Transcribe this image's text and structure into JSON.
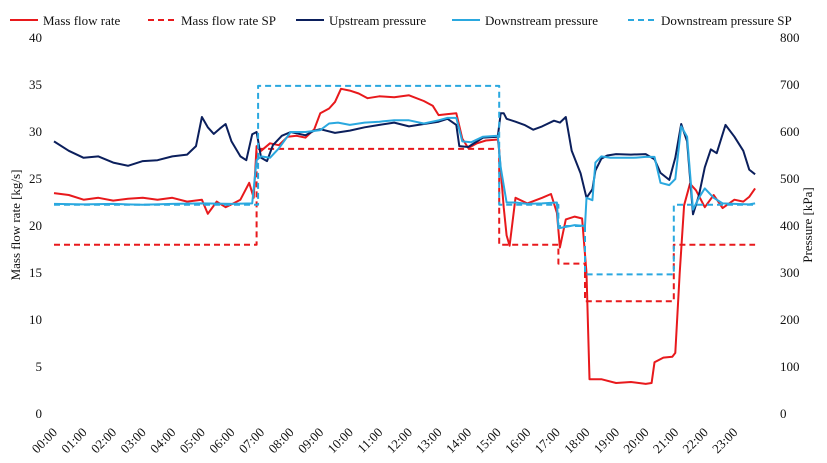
{
  "chart_data": {
    "type": "line",
    "title": "",
    "xlabel": "",
    "ylabel": "Mass flow rate [kg/s]",
    "y2label": "Pressure [kPa]",
    "ylim": [
      0,
      40
    ],
    "y2lim": [
      0,
      800
    ],
    "yticks": [
      "0",
      "5",
      "10",
      "15",
      "20",
      "25",
      "30",
      "35",
      "40"
    ],
    "y2ticks": [
      "0",
      "100",
      "200",
      "300",
      "400",
      "500",
      "600",
      "700",
      "800"
    ],
    "xlim": [
      0,
      24
    ],
    "xticks": [
      "00:00",
      "01:00",
      "02:00",
      "03:00",
      "04:00",
      "05:00",
      "06:00",
      "07:00",
      "08:00",
      "09:00",
      "10:00",
      "11:00",
      "12:00",
      "13:00",
      "14:00",
      "15:00",
      "16:00",
      "17:00",
      "18:00",
      "19:00",
      "20:00",
      "21:00",
      "22:00",
      "23:00"
    ],
    "legend_position": "top",
    "series": [
      {
        "name": "Mass flow rate",
        "axis": "left",
        "color": "#e8191c",
        "dash": "solid",
        "width": 2,
        "points": [
          [
            0,
            23.5
          ],
          [
            0.5,
            23.3
          ],
          [
            1,
            22.8
          ],
          [
            1.5,
            23
          ],
          [
            2,
            22.7
          ],
          [
            2.5,
            22.9
          ],
          [
            3,
            23
          ],
          [
            3.5,
            22.8
          ],
          [
            4,
            23
          ],
          [
            4.5,
            22.6
          ],
          [
            5,
            22.8
          ],
          [
            5.2,
            21.3
          ],
          [
            5.5,
            22.6
          ],
          [
            5.8,
            22
          ],
          [
            6,
            22.3
          ],
          [
            6.3,
            22.8
          ],
          [
            6.6,
            24.6
          ],
          [
            6.75,
            23
          ],
          [
            6.85,
            28.5
          ],
          [
            7,
            28
          ],
          [
            7.3,
            28.8
          ],
          [
            7.6,
            28.6
          ],
          [
            7.9,
            29.5
          ],
          [
            8.2,
            29.6
          ],
          [
            8.5,
            29.4
          ],
          [
            8.8,
            30.3
          ],
          [
            9,
            32
          ],
          [
            9.3,
            32.5
          ],
          [
            9.5,
            33.2
          ],
          [
            9.7,
            34.6
          ],
          [
            10,
            34.4
          ],
          [
            10.3,
            34.1
          ],
          [
            10.6,
            33.6
          ],
          [
            11,
            33.8
          ],
          [
            11.5,
            33.7
          ],
          [
            12,
            33.9
          ],
          [
            12.5,
            33.3
          ],
          [
            12.8,
            32.8
          ],
          [
            13,
            31.8
          ],
          [
            13.3,
            31.9
          ],
          [
            13.6,
            32
          ],
          [
            13.8,
            29.3
          ],
          [
            14,
            28.3
          ],
          [
            14.3,
            28.8
          ],
          [
            14.6,
            29.1
          ],
          [
            15,
            29.2
          ],
          [
            15.05,
            28
          ],
          [
            15.2,
            22
          ],
          [
            15.3,
            19
          ],
          [
            15.4,
            17.9
          ],
          [
            15.6,
            23
          ],
          [
            16,
            22.4
          ],
          [
            16.5,
            23
          ],
          [
            16.8,
            23.4
          ],
          [
            17,
            21.4
          ],
          [
            17.1,
            17.7
          ],
          [
            17.3,
            20.7
          ],
          [
            17.6,
            21
          ],
          [
            17.85,
            20.8
          ],
          [
            18,
            15
          ],
          [
            18.1,
            3.7
          ],
          [
            18.5,
            3.7
          ],
          [
            19,
            3.3
          ],
          [
            19.5,
            3.4
          ],
          [
            20,
            3.2
          ],
          [
            20.2,
            3.3
          ],
          [
            20.3,
            5.5
          ],
          [
            20.6,
            6
          ],
          [
            20.9,
            6.1
          ],
          [
            21,
            6.5
          ],
          [
            21.15,
            15
          ],
          [
            21.3,
            22.2
          ],
          [
            21.5,
            24.5
          ],
          [
            21.7,
            23.8
          ],
          [
            22,
            22
          ],
          [
            22.3,
            23.3
          ],
          [
            22.6,
            21.9
          ],
          [
            23,
            22.8
          ],
          [
            23.3,
            22.6
          ],
          [
            23.5,
            23.1
          ],
          [
            23.7,
            24
          ]
        ]
      },
      {
        "name": "Mass flow rate SP",
        "axis": "left",
        "color": "#e8191c",
        "dash": "dashed",
        "width": 2,
        "points": [
          [
            0,
            18
          ],
          [
            6.85,
            18
          ],
          [
            6.85,
            28.2
          ],
          [
            15.05,
            28.2
          ],
          [
            15.05,
            18
          ],
          [
            17.05,
            18
          ],
          [
            17.05,
            16
          ],
          [
            17.95,
            16
          ],
          [
            17.95,
            12
          ],
          [
            20.95,
            12
          ],
          [
            20.95,
            18
          ],
          [
            23.7,
            18
          ]
        ]
      },
      {
        "name": "Upstream pressure",
        "axis": "right",
        "color": "#0b1f5c",
        "dash": "solid",
        "width": 2,
        "points": [
          [
            0,
            580
          ],
          [
            0.5,
            560
          ],
          [
            1,
            545
          ],
          [
            1.5,
            548
          ],
          [
            2,
            535
          ],
          [
            2.5,
            528
          ],
          [
            3,
            538
          ],
          [
            3.5,
            540
          ],
          [
            4,
            548
          ],
          [
            4.5,
            552
          ],
          [
            4.8,
            570
          ],
          [
            5,
            632
          ],
          [
            5.2,
            610
          ],
          [
            5.4,
            596
          ],
          [
            5.6,
            607
          ],
          [
            5.8,
            617
          ],
          [
            6,
            580
          ],
          [
            6.3,
            548
          ],
          [
            6.5,
            540
          ],
          [
            6.7,
            595
          ],
          [
            6.85,
            600
          ],
          [
            7,
            545
          ],
          [
            7.2,
            538
          ],
          [
            7.4,
            572
          ],
          [
            7.7,
            592
          ],
          [
            8,
            600
          ],
          [
            8.5,
            593
          ],
          [
            8.8,
            603
          ],
          [
            9,
            606
          ],
          [
            9.5,
            598
          ],
          [
            10,
            603
          ],
          [
            10.5,
            610
          ],
          [
            11,
            615
          ],
          [
            11.5,
            620
          ],
          [
            12,
            612
          ],
          [
            12.5,
            617
          ],
          [
            13,
            622
          ],
          [
            13.3,
            628
          ],
          [
            13.6,
            615
          ],
          [
            13.7,
            570
          ],
          [
            14,
            568
          ],
          [
            14.5,
            588
          ],
          [
            15,
            590
          ],
          [
            15.1,
            640
          ],
          [
            15.2,
            640
          ],
          [
            15.3,
            628
          ],
          [
            15.6,
            622
          ],
          [
            15.9,
            615
          ],
          [
            16.2,
            605
          ],
          [
            16.5,
            612
          ],
          [
            16.9,
            624
          ],
          [
            17.1,
            620
          ],
          [
            17.3,
            632
          ],
          [
            17.5,
            560
          ],
          [
            17.8,
            512
          ],
          [
            18,
            460
          ],
          [
            18.2,
            478
          ],
          [
            18.3,
            518
          ],
          [
            18.5,
            543
          ],
          [
            18.7,
            550
          ],
          [
            19,
            553
          ],
          [
            19.5,
            552
          ],
          [
            20,
            553
          ],
          [
            20.3,
            542
          ],
          [
            20.5,
            513
          ],
          [
            20.8,
            498
          ],
          [
            21,
            545
          ],
          [
            21.2,
            617
          ],
          [
            21.4,
            580
          ],
          [
            21.6,
            425
          ],
          [
            21.8,
            465
          ],
          [
            22,
            525
          ],
          [
            22.2,
            563
          ],
          [
            22.4,
            555
          ],
          [
            22.7,
            615
          ],
          [
            23,
            590
          ],
          [
            23.3,
            560
          ],
          [
            23.5,
            520
          ],
          [
            23.7,
            510
          ]
        ]
      },
      {
        "name": "Downstream pressure",
        "axis": "right",
        "color": "#2aa8df",
        "dash": "solid",
        "width": 2,
        "points": [
          [
            0,
            447
          ],
          [
            1,
            446
          ],
          [
            2,
            447
          ],
          [
            3,
            445
          ],
          [
            4,
            447
          ],
          [
            5,
            448
          ],
          [
            6,
            447
          ],
          [
            6.7,
            448
          ],
          [
            6.85,
            540
          ],
          [
            7,
            548
          ],
          [
            7.3,
            545
          ],
          [
            7.6,
            565
          ],
          [
            8,
            600
          ],
          [
            8.5,
            600
          ],
          [
            9,
            604
          ],
          [
            9.3,
            618
          ],
          [
            9.6,
            620
          ],
          [
            10,
            615
          ],
          [
            10.5,
            620
          ],
          [
            11,
            622
          ],
          [
            11.5,
            625
          ],
          [
            12,
            625
          ],
          [
            12.5,
            618
          ],
          [
            13,
            625
          ],
          [
            13.3,
            630
          ],
          [
            13.6,
            630
          ],
          [
            13.8,
            580
          ],
          [
            14.1,
            578
          ],
          [
            14.5,
            590
          ],
          [
            15,
            592
          ],
          [
            15.1,
            525
          ],
          [
            15.3,
            450
          ],
          [
            15.6,
            450
          ],
          [
            16,
            447
          ],
          [
            16.5,
            448
          ],
          [
            17,
            450
          ],
          [
            17.05,
            395
          ],
          [
            17.3,
            398
          ],
          [
            17.6,
            402
          ],
          [
            17.95,
            400
          ],
          [
            18,
            460
          ],
          [
            18.2,
            455
          ],
          [
            18.3,
            535
          ],
          [
            18.5,
            548
          ],
          [
            18.8,
            545
          ],
          [
            19.2,
            545
          ],
          [
            19.6,
            545
          ],
          [
            20,
            547
          ],
          [
            20.3,
            547
          ],
          [
            20.5,
            492
          ],
          [
            20.8,
            487
          ],
          [
            21,
            500
          ],
          [
            21.2,
            612
          ],
          [
            21.4,
            590
          ],
          [
            21.6,
            435
          ],
          [
            21.8,
            460
          ],
          [
            22,
            480
          ],
          [
            22.3,
            460
          ],
          [
            22.6,
            448
          ],
          [
            23,
            447
          ],
          [
            23.5,
            446
          ],
          [
            23.7,
            448
          ]
        ]
      },
      {
        "name": "Downstream pressure SP",
        "axis": "right",
        "color": "#2aa8df",
        "dash": "dashed",
        "width": 2,
        "points": [
          [
            0,
            445
          ],
          [
            6.9,
            445
          ],
          [
            6.9,
            698
          ],
          [
            15.05,
            698
          ],
          [
            15.05,
            445
          ],
          [
            17.05,
            445
          ],
          [
            17.05,
            400
          ],
          [
            17.95,
            400
          ],
          [
            17.95,
            297
          ],
          [
            20.95,
            297
          ],
          [
            20.95,
            445
          ],
          [
            23.7,
            445
          ]
        ]
      }
    ]
  }
}
